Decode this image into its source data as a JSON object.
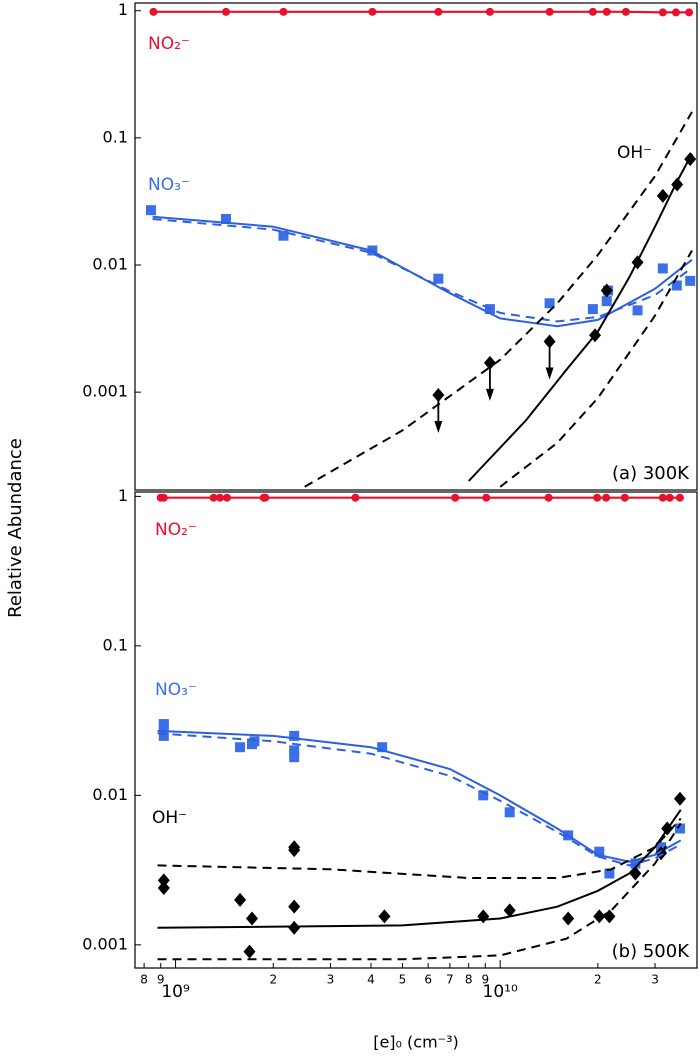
{
  "x_label": "[e]₀ (cm⁻³)",
  "y_label": "Relative Abundance",
  "chart_data": [
    {
      "type": "scatter",
      "panel_label": "(a) 300K",
      "xlim": [
        750000000,
        40400000000
      ],
      "ylim": [
        0.00017,
        1.15
      ],
      "yticks": [
        1,
        0.1,
        0.01,
        0.001
      ],
      "log_x": true,
      "log_y": true,
      "series": [
        {
          "name": "NO₂⁻",
          "color": "#e8102a",
          "marker": "circle",
          "line": "solid",
          "x": [
            855000000,
            1430000000,
            2150000000,
            4040000000,
            6450000000,
            9300000000,
            14200000000,
            19300000000,
            21300000000,
            24400000000,
            31700000000,
            34800000000,
            38200000000
          ],
          "values": [
            0.98,
            0.98,
            0.98,
            0.98,
            0.98,
            0.98,
            0.98,
            0.98,
            0.98,
            0.98,
            0.97,
            0.97,
            0.97
          ]
        },
        {
          "name": "NO₃⁻",
          "color": "#3a6fe8",
          "marker": "square",
          "x": [
            840000000,
            1430000000,
            2150000000,
            4040000000,
            6450000000,
            9300000000,
            14200000000,
            19300000000,
            21300000000,
            21500000000,
            26500000000,
            31700000000,
            35000000000,
            38500000000
          ],
          "values": [
            0.027,
            0.023,
            0.017,
            0.013,
            0.0078,
            0.0045,
            0.005,
            0.0045,
            0.0052,
            0.0063,
            0.0044,
            0.0094,
            0.0069,
            0.0075
          ]
        },
        {
          "name": "OH⁻",
          "color": "#000000",
          "marker": "diamond",
          "x": [
            6450000000,
            9300000000,
            14200000000,
            19600000000,
            21300000000,
            26500000000,
            31700000000,
            35100000000,
            38500000000
          ],
          "values": [
            0.00095,
            0.0017,
            0.0025,
            0.0028,
            0.0063,
            0.0105,
            0.035,
            0.043,
            0.068
          ],
          "upper_limits": [
            true,
            true,
            true,
            false,
            false,
            false,
            false,
            false,
            false
          ]
        },
        {
          "color": "#2e5fe0",
          "line": "solid",
          "x": [
            850000000,
            2000000000,
            4000000000,
            7000000000,
            10000000000,
            15000000000,
            20000000000,
            30000000000,
            39000000000
          ],
          "values": [
            0.024,
            0.02,
            0.013,
            0.006,
            0.0038,
            0.0033,
            0.0037,
            0.0065,
            0.011
          ]
        },
        {
          "color": "#2e5fe0",
          "line": "dashed",
          "x": [
            850000000,
            2000000000,
            4000000000,
            7000000000,
            10000000000,
            15000000000,
            20000000000,
            30000000000,
            39000000000
          ],
          "values": [
            0.023,
            0.019,
            0.0125,
            0.0062,
            0.0042,
            0.0036,
            0.0039,
            0.0058,
            0.0095
          ]
        },
        {
          "color": "#000000",
          "line": "solid",
          "x": [
            8000000000,
            12000000000,
            16000000000,
            20000000000,
            25000000000,
            30000000000,
            35000000000,
            39000000000
          ],
          "values": [
            0.0002,
            0.0006,
            0.0015,
            0.003,
            0.008,
            0.02,
            0.045,
            0.075
          ]
        },
        {
          "color": "#000000",
          "line": "dashed",
          "x": [
            2500000000,
            5000000000,
            10000000000,
            15000000000,
            20000000000,
            30000000000,
            39000000000
          ],
          "values": [
            0.00018,
            0.0005,
            0.0018,
            0.005,
            0.012,
            0.05,
            0.16
          ]
        },
        {
          "color": "#000000",
          "line": "dashed",
          "x": [
            10000000000,
            15000000000,
            20000000000,
            30000000000,
            39000000000
          ],
          "values": [
            0.00018,
            0.0004,
            0.0009,
            0.004,
            0.013
          ]
        }
      ]
    },
    {
      "type": "scatter",
      "panel_label": "(b) 500K",
      "xlim": [
        750000000,
        40400000000
      ],
      "ylim": [
        0.0007,
        1.07
      ],
      "yticks": [
        1,
        0.1,
        0.01,
        0.001
      ],
      "log_x": true,
      "log_y": true,
      "xticks": [
        {
          "value": 800000000,
          "label": "8"
        },
        {
          "value": 900000000,
          "label": "9"
        },
        {
          "value": 1000000000,
          "label": "10⁹"
        },
        {
          "value": 2000000000,
          "label": "2"
        },
        {
          "value": 3000000000,
          "label": "3"
        },
        {
          "value": 4000000000,
          "label": "4"
        },
        {
          "value": 5000000000,
          "label": "5"
        },
        {
          "value": 6000000000,
          "label": "6"
        },
        {
          "value": 7000000000,
          "label": "7"
        },
        {
          "value": 8000000000,
          "label": "8"
        },
        {
          "value": 9000000000,
          "label": "9"
        },
        {
          "value": 10000000000,
          "label": "10¹⁰"
        },
        {
          "value": 20000000000,
          "label": "2"
        },
        {
          "value": 30000000000,
          "label": "3"
        }
      ],
      "series": [
        {
          "name": "NO₂⁻",
          "color": "#e8102a",
          "marker": "circle",
          "line": "solid",
          "x": [
            900000000,
            920000000,
            1310000000,
            1370000000,
            1440000000,
            1870000000,
            1890000000,
            3580000000,
            7270000000,
            9060000000,
            14100000000,
            19900000000,
            21200000000,
            24200000000,
            31700000000,
            33300000000,
            35800000000
          ],
          "values": [
            0.98,
            0.98,
            0.98,
            0.98,
            0.98,
            0.98,
            0.98,
            0.98,
            0.98,
            0.98,
            0.98,
            0.98,
            0.98,
            0.98,
            0.98,
            0.98,
            0.98
          ]
        },
        {
          "name": "NO₃⁻",
          "color": "#3a6fe8",
          "marker": "square",
          "x": [
            920000000,
            920000000,
            920000000,
            1580000000,
            1720000000,
            1750000000,
            2320000000,
            2320000000,
            2320000000,
            4330000000,
            8870000000,
            10700000000,
            16200000000,
            20200000000,
            21700000000,
            26100000000,
            31300000000,
            35800000000
          ],
          "values": [
            0.03,
            0.029,
            0.025,
            0.021,
            0.022,
            0.023,
            0.025,
            0.02,
            0.018,
            0.021,
            0.01,
            0.0077,
            0.0054,
            0.0042,
            0.003,
            0.0035,
            0.0045,
            0.006
          ]
        },
        {
          "name": "OH⁻",
          "color": "#000000",
          "marker": "diamond",
          "x": [
            920000000,
            920000000,
            1580000000,
            1720000000,
            1690000000,
            2320000000,
            2320000000,
            2320000000,
            2320000000,
            4400000000,
            8870000000,
            10700000000,
            16200000000,
            20200000000,
            21700000000,
            26100000000,
            31300000000,
            32700000000,
            35800000000
          ],
          "values": [
            0.0027,
            0.0024,
            0.002,
            0.0015,
            0.0009,
            0.0045,
            0.0043,
            0.0018,
            0.0013,
            0.00155,
            0.00155,
            0.0017,
            0.0015,
            0.00155,
            0.00155,
            0.003,
            0.0041,
            0.006,
            0.0095
          ]
        },
        {
          "color": "#2e5fe0",
          "line": "solid",
          "x": [
            880000000,
            2000000000,
            4000000000,
            7000000000,
            10000000000,
            15000000000,
            20000000000,
            25000000000,
            30000000000,
            36000000000
          ],
          "values": [
            0.027,
            0.025,
            0.021,
            0.015,
            0.01,
            0.006,
            0.004,
            0.0036,
            0.004,
            0.005
          ]
        },
        {
          "color": "#2e5fe0",
          "line": "dashed",
          "x": [
            880000000,
            2000000000,
            4000000000,
            7000000000,
            10000000000,
            15000000000,
            20000000000,
            25000000000,
            30000000000,
            36000000000
          ],
          "values": [
            0.026,
            0.023,
            0.019,
            0.0135,
            0.0092,
            0.0057,
            0.0039,
            0.0034,
            0.0038,
            0.0047
          ]
        },
        {
          "color": "#000000",
          "line": "solid",
          "x": [
            880000000,
            5000000000,
            10000000000,
            15000000000,
            20000000000,
            25000000000,
            30000000000,
            36000000000
          ],
          "values": [
            0.0013,
            0.00135,
            0.0015,
            0.0018,
            0.0023,
            0.003,
            0.0045,
            0.008
          ]
        },
        {
          "color": "#000000",
          "line": "dashed",
          "x": [
            880000000,
            3000000000,
            8000000000,
            15000000000,
            22000000000,
            30000000000,
            36000000000
          ],
          "values": [
            0.0034,
            0.0032,
            0.0028,
            0.0028,
            0.0032,
            0.0045,
            0.007
          ]
        },
        {
          "color": "#000000",
          "line": "dashed",
          "x": [
            880000000,
            5000000000,
            10000000000,
            16000000000,
            22000000000,
            30000000000,
            36000000000
          ],
          "values": [
            0.0008,
            0.0008,
            0.00085,
            0.0011,
            0.0017,
            0.0035,
            0.0065
          ]
        }
      ]
    }
  ]
}
